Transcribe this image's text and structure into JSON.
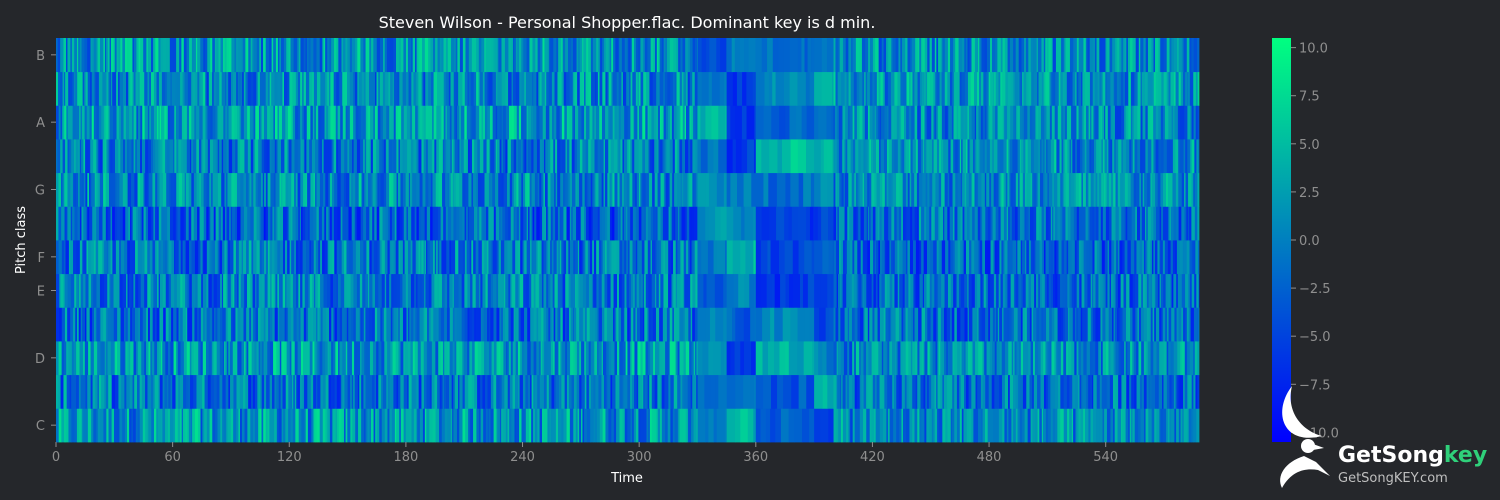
{
  "chart_data": {
    "type": "heatmap",
    "title": "Steven Wilson - Personal Shopper.flac. Dominant key is d min.",
    "xlabel": "Time",
    "ylabel": "Pitch class",
    "xlim": [
      0,
      588
    ],
    "x_ticks": [
      0,
      60,
      120,
      180,
      240,
      300,
      360,
      420,
      480,
      540
    ],
    "y_ticks": [
      "C",
      "D",
      "E",
      "F",
      "G",
      "A",
      "B"
    ],
    "pitch_rows": [
      "C",
      "C#",
      "D",
      "D#",
      "E",
      "F",
      "F#",
      "G",
      "G#",
      "A",
      "A#",
      "B"
    ],
    "value_range": [
      -10.5,
      10.5
    ],
    "colorbar_ticks": [
      {
        "value": 10.0,
        "label": "10.0"
      },
      {
        "value": 7.5,
        "label": "7.5"
      },
      {
        "value": 5.0,
        "label": "5.0"
      },
      {
        "value": 2.5,
        "label": "2.5"
      },
      {
        "value": 0.0,
        "label": "0.0"
      },
      {
        "value": -2.5,
        "label": "−2.5"
      },
      {
        "value": -5.0,
        "label": "−5.0"
      },
      {
        "value": -7.5,
        "label": "−7.5"
      },
      {
        "value": -10.0,
        "label": "−10.0"
      }
    ],
    "colormap": [
      "#0000ff",
      "#00ff80"
    ],
    "segments": [
      {
        "from": 0,
        "to": 330,
        "row_means": [
          1.5,
          -1.0,
          2.0,
          -1.5,
          -0.5,
          -1.0,
          -2.5,
          0.5,
          -0.5,
          2.0,
          0.5,
          1.5
        ],
        "variation": 6.5
      },
      {
        "from": 330,
        "to": 345,
        "row_means": [
          -1.0,
          -1.0,
          2.5,
          0.0,
          -3.0,
          -1.0,
          2.0,
          1.0,
          -1.0,
          4.0,
          0.0,
          -4.0
        ],
        "variation": 2.0
      },
      {
        "from": 345,
        "to": 360,
        "row_means": [
          4.5,
          0.0,
          -5.5,
          -3.0,
          0.5,
          5.0,
          0.5,
          -1.0,
          -5.5,
          -6.0,
          -6.0,
          0.5
        ],
        "variation": 2.5
      },
      {
        "from": 360,
        "to": 390,
        "row_means": [
          -3.0,
          -3.5,
          4.0,
          0.5,
          -6.0,
          -4.5,
          -5.5,
          -1.5,
          5.0,
          -2.0,
          0.5,
          -1.0
        ],
        "variation": 2.5
      },
      {
        "from": 390,
        "to": 400,
        "row_means": [
          -5.0,
          4.5,
          0.0,
          -5.0,
          -4.5,
          -2.0,
          -5.0,
          0.5,
          4.0,
          -2.0,
          5.0,
          0.5
        ],
        "variation": 2.0
      },
      {
        "from": 400,
        "to": 588,
        "row_means": [
          0.5,
          -1.5,
          0.5,
          -1.5,
          -2.0,
          -2.5,
          -1.5,
          1.0,
          1.0,
          0.5,
          1.5,
          1.0
        ],
        "variation": 6.0
      }
    ]
  },
  "logo": {
    "brand_main": "GetSong",
    "brand_accent": "key",
    "url_text": "GetSongKEY.com"
  }
}
